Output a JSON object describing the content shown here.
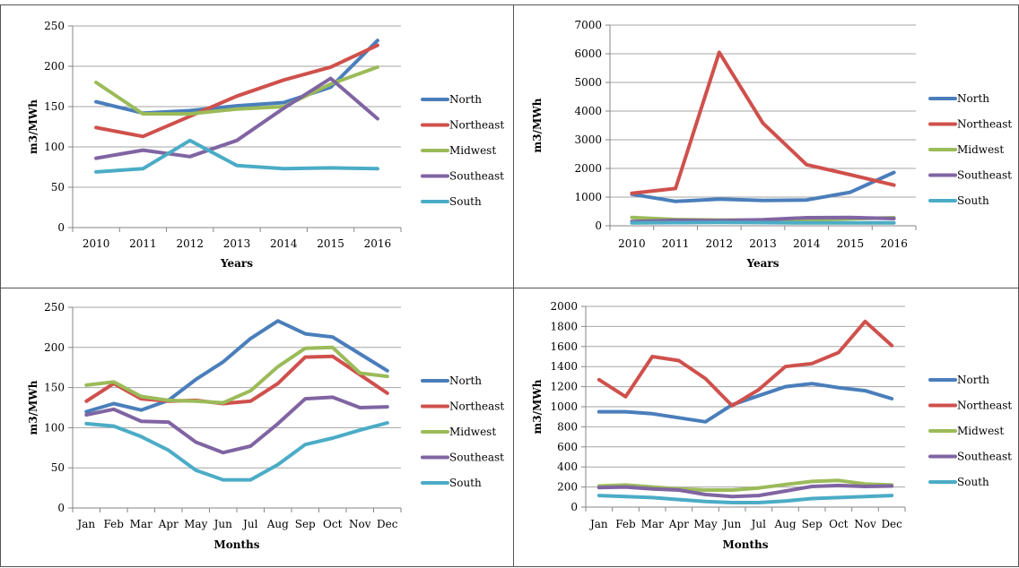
{
  "colors": {
    "North": "#4a7ebb",
    "Northeast": "#cf504c",
    "Midwest": "#9bbb59",
    "Southeast": "#8064a2",
    "South": "#4bacc6",
    "grid": "#a6a6a6",
    "axis": "#868686"
  },
  "chart_data": [
    {
      "type": "line",
      "x": [
        "2010",
        "2011",
        "2012",
        "2013",
        "2014",
        "2015",
        "2016"
      ],
      "xlabel": "Years",
      "ylabel": "m3/MWh",
      "ylim": [
        0,
        250
      ],
      "yticks": [
        0,
        50,
        100,
        150,
        200,
        250
      ],
      "grid": true,
      "legend": "right",
      "series": [
        {
          "name": "North",
          "values": [
            156,
            142,
            145,
            151,
            155,
            174,
            232
          ]
        },
        {
          "name": "Northeast",
          "values": [
            124,
            113,
            138,
            163,
            183,
            199,
            226
          ]
        },
        {
          "name": "Midwest",
          "values": [
            180,
            141,
            141,
            147,
            150,
            178,
            199
          ]
        },
        {
          "name": "Southeast",
          "values": [
            86,
            96,
            88,
            108,
            148,
            185,
            135
          ]
        },
        {
          "name": "South",
          "values": [
            69,
            73,
            108,
            77,
            73,
            74,
            73
          ]
        }
      ]
    },
    {
      "type": "line",
      "x": [
        "2010",
        "2011",
        "2012",
        "2013",
        "2014",
        "2015",
        "2016"
      ],
      "xlabel": "Years",
      "ylabel": "m3/MWh",
      "ylim": [
        0,
        7000
      ],
      "yticks": [
        0,
        1000,
        2000,
        3000,
        4000,
        5000,
        6000,
        7000
      ],
      "grid": true,
      "legend": "right",
      "series": [
        {
          "name": "North",
          "values": [
            1100,
            850,
            930,
            880,
            900,
            1170,
            1860
          ]
        },
        {
          "name": "Northeast",
          "values": [
            1130,
            1300,
            6050,
            3580,
            2130,
            1780,
            1420
          ]
        },
        {
          "name": "Midwest",
          "values": [
            290,
            220,
            200,
            200,
            200,
            240,
            280
          ]
        },
        {
          "name": "Southeast",
          "values": [
            150,
            190,
            180,
            210,
            280,
            290,
            250
          ]
        },
        {
          "name": "South",
          "values": [
            100,
            110,
            120,
            110,
            100,
            100,
            100
          ]
        }
      ]
    },
    {
      "type": "line",
      "x": [
        "Jan",
        "Feb",
        "Mar",
        "Apr",
        "May",
        "Jun",
        "Jul",
        "Aug",
        "Sep",
        "Oct",
        "Nov",
        "Dec"
      ],
      "xlabel": "Months",
      "ylabel": "m3/MWh",
      "ylim": [
        0,
        250
      ],
      "yticks": [
        0,
        50,
        100,
        150,
        200,
        250
      ],
      "grid": true,
      "legend": "right",
      "series": [
        {
          "name": "North",
          "values": [
            120,
            130,
            122,
            134,
            160,
            182,
            211,
            233,
            217,
            213,
            192,
            171
          ]
        },
        {
          "name": "Northeast",
          "values": [
            133,
            155,
            136,
            133,
            134,
            130,
            133,
            155,
            188,
            189,
            166,
            143
          ]
        },
        {
          "name": "Midwest",
          "values": [
            153,
            157,
            139,
            134,
            133,
            131,
            146,
            176,
            199,
            200,
            168,
            164
          ]
        },
        {
          "name": "Southeast",
          "values": [
            116,
            123,
            108,
            107,
            82,
            69,
            77,
            105,
            136,
            138,
            125,
            126
          ]
        },
        {
          "name": "South",
          "values": [
            105,
            102,
            89,
            72,
            47,
            35,
            35,
            54,
            79,
            87,
            97,
            106
          ]
        }
      ]
    },
    {
      "type": "line",
      "x": [
        "Jan",
        "Feb",
        "Mar",
        "Apr",
        "May",
        "Jun",
        "Jul",
        "Aug",
        "Sep",
        "Oct",
        "Nov",
        "Dec"
      ],
      "xlabel": "Months",
      "ylabel": "m3/MWh",
      "ylim": [
        0,
        2000
      ],
      "yticks": [
        0,
        200,
        400,
        600,
        800,
        1000,
        1200,
        1400,
        1600,
        1800,
        2000
      ],
      "grid": true,
      "legend": "right",
      "series": [
        {
          "name": "North",
          "values": [
            950,
            950,
            930,
            890,
            850,
            1020,
            1110,
            1200,
            1230,
            1190,
            1160,
            1080
          ]
        },
        {
          "name": "Northeast",
          "values": [
            1270,
            1100,
            1500,
            1460,
            1280,
            1010,
            1170,
            1400,
            1430,
            1540,
            1850,
            1610
          ]
        },
        {
          "name": "Midwest",
          "values": [
            210,
            220,
            200,
            180,
            170,
            170,
            190,
            225,
            255,
            265,
            230,
            220
          ]
        },
        {
          "name": "Southeast",
          "values": [
            195,
            200,
            180,
            170,
            125,
            105,
            115,
            160,
            205,
            215,
            205,
            210
          ]
        },
        {
          "name": "South",
          "values": [
            115,
            105,
            95,
            75,
            55,
            45,
            45,
            60,
            85,
            95,
            105,
            115
          ]
        }
      ]
    }
  ]
}
